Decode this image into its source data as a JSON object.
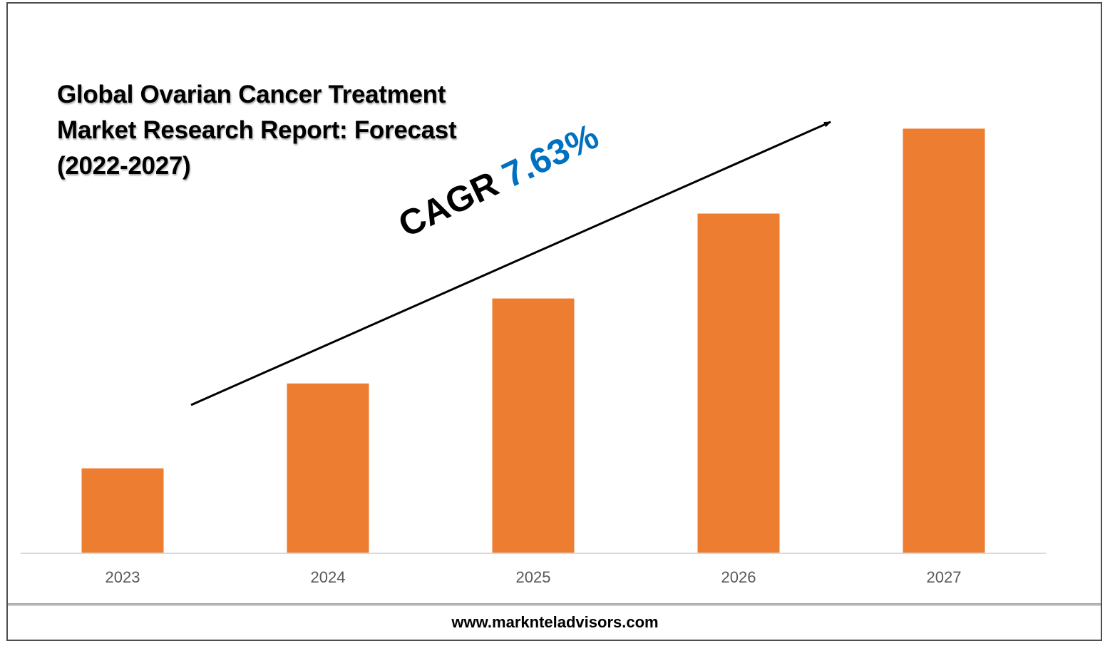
{
  "chart_data": {
    "type": "bar",
    "title": "Global Ovarian Cancer Treatment Market Research Report: Forecast (2022-2027)",
    "categories": [
      "2023",
      "2024",
      "2025",
      "2026",
      "2027"
    ],
    "values": [
      1,
      2,
      3,
      4,
      5
    ],
    "xlabel": "",
    "ylabel": "",
    "ylim": [
      0,
      5.02
    ],
    "grid": false,
    "legend": "none",
    "bar_color": "#ed7d31",
    "annotation": {
      "prefix": "CAGR",
      "value": "7.63%",
      "value_color": "#0070c0"
    }
  },
  "footer": {
    "url": "www.marknteladvisors.com"
  }
}
